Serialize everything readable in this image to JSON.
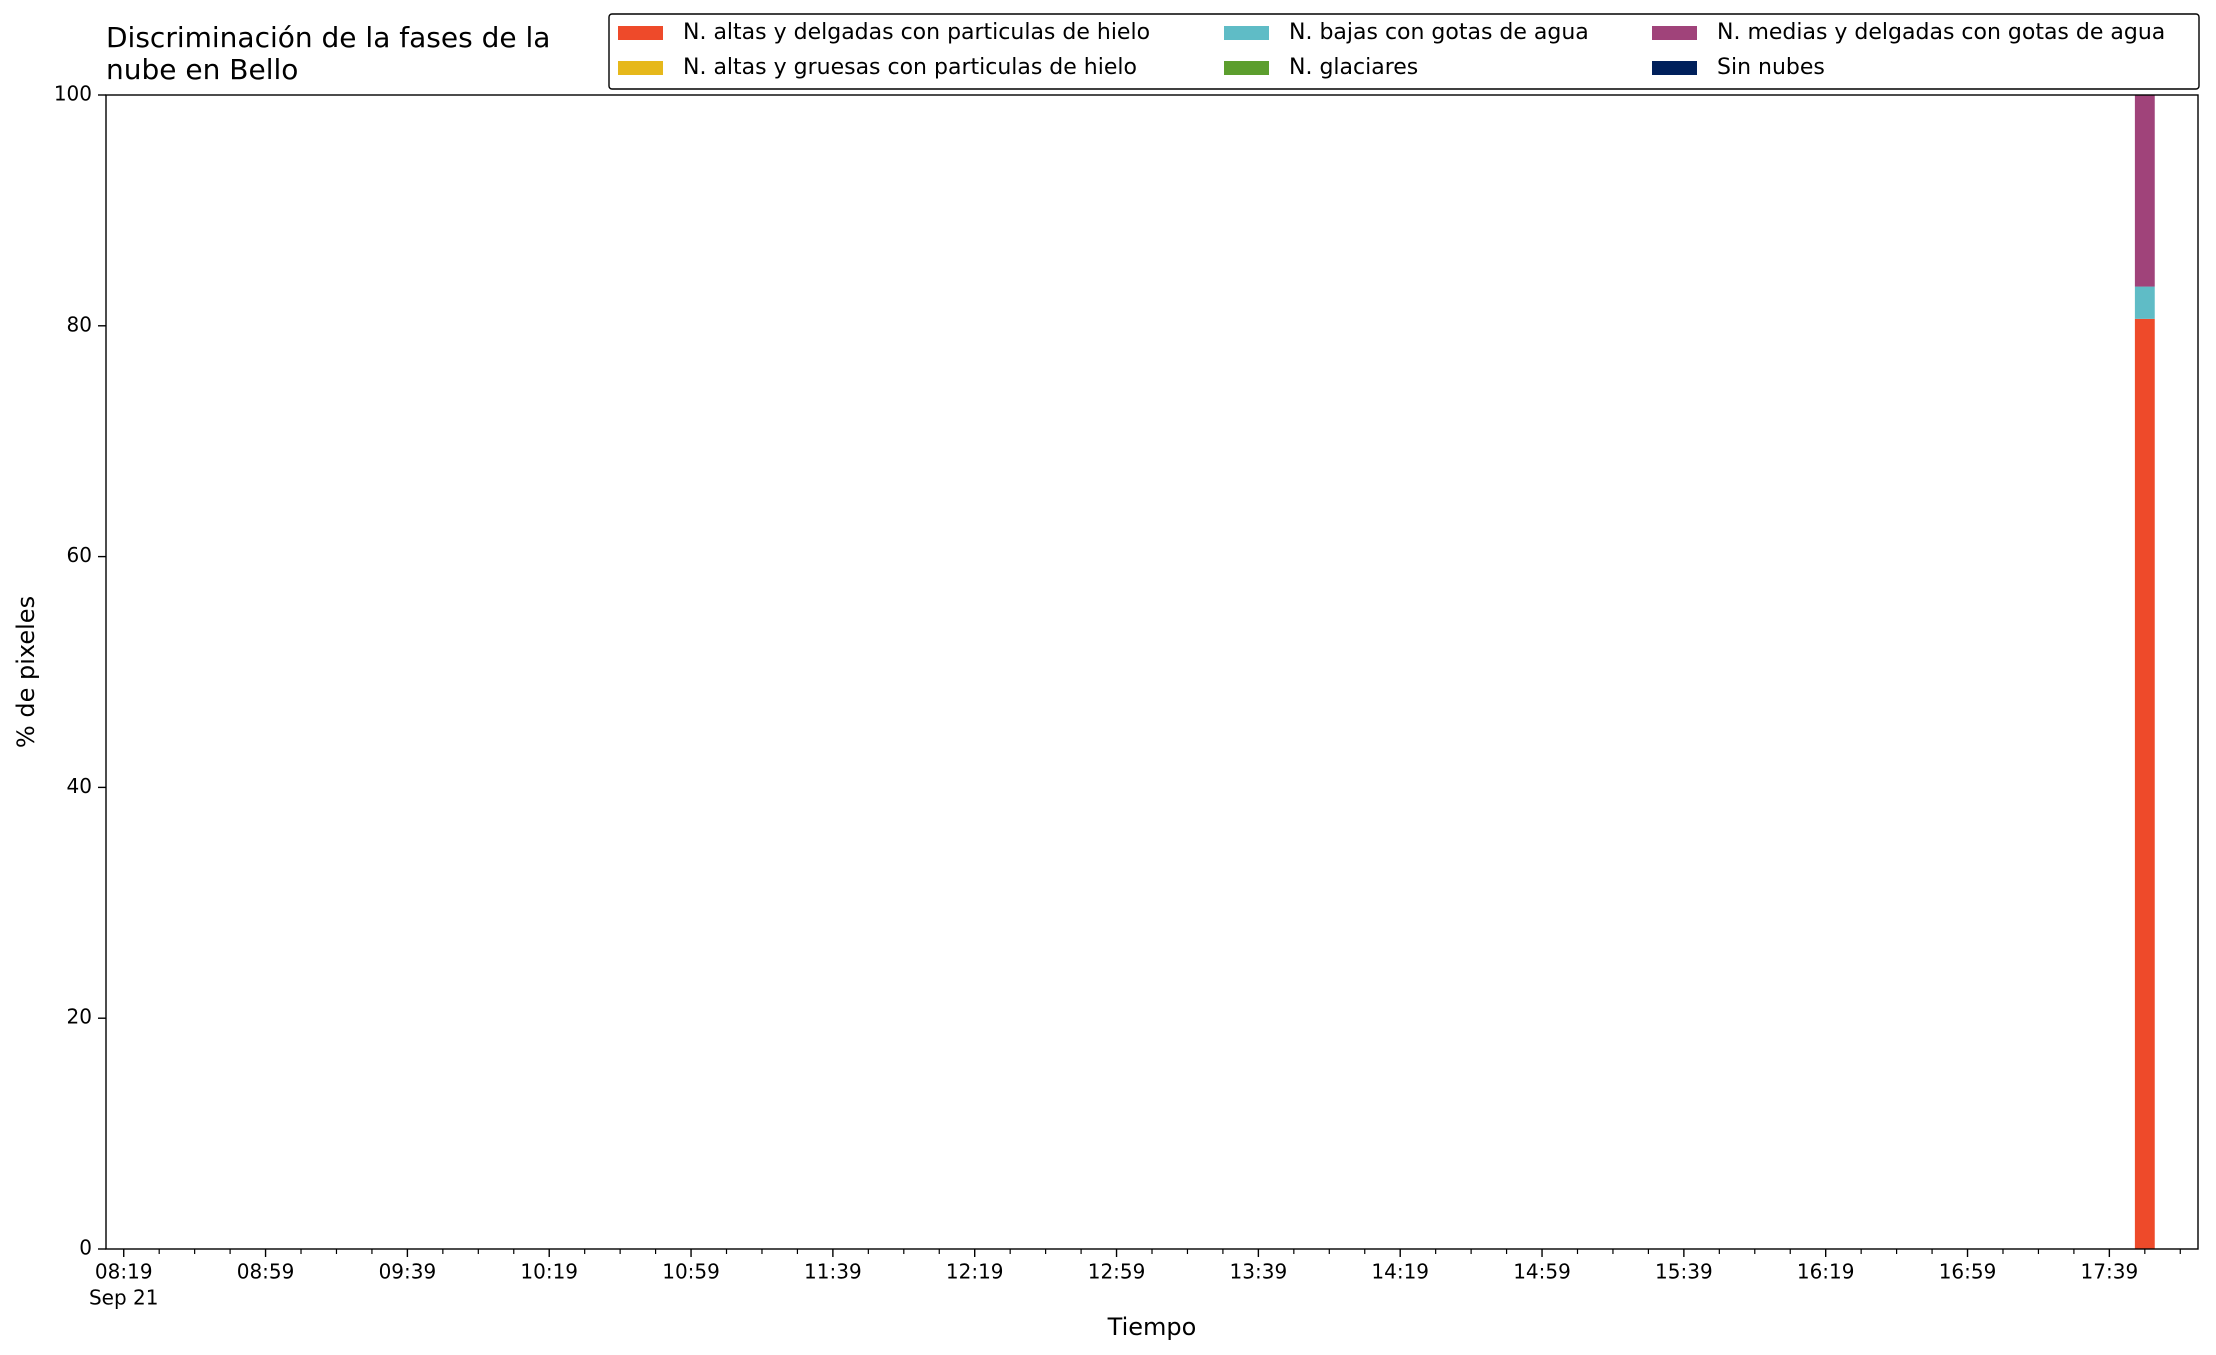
{
  "chart_data": {
    "type": "bar",
    "stacked": true,
    "title": "Discriminación de la fases de la\nnube en Bello",
    "xlabel": "Tiempo",
    "ylabel": "% de pixeles",
    "x": [
      "17:49"
    ],
    "x_date_label": "Sep 21",
    "series": [
      {
        "name": "N. altas y delgadas con particulas de hielo",
        "color": "#ee4a2a",
        "values": [
          80.6
        ]
      },
      {
        "name": "N. altas y gruesas con particulas de hielo",
        "color": "#e6b81b",
        "values": [
          0
        ]
      },
      {
        "name": "N. bajas con gotas de agua",
        "color": "#5fbcc6",
        "values": [
          2.8
        ]
      },
      {
        "name": "N. glaciares",
        "color": "#5c9e2e",
        "values": [
          0
        ]
      },
      {
        "name": "N. medias y delgadas con gotas de agua",
        "color": "#a0437a",
        "values": [
          16.6
        ]
      },
      {
        "name": "Sin nubes",
        "color": "#00205b",
        "values": [
          0
        ]
      }
    ],
    "xlim": [
      "08:14",
      "18:04"
    ],
    "xticks": [
      "08:19",
      "08:59",
      "09:39",
      "10:19",
      "10:59",
      "11:39",
      "12:19",
      "12:59",
      "13:39",
      "14:19",
      "14:59",
      "15:39",
      "16:19",
      "16:59",
      "17:39"
    ],
    "xminorticks": [
      "08:29",
      "08:39",
      "08:49",
      "09:09",
      "09:19",
      "09:29",
      "09:49",
      "09:59",
      "10:09",
      "10:29",
      "10:39",
      "10:49",
      "11:09",
      "11:19",
      "11:29",
      "11:49",
      "11:59",
      "12:09",
      "12:29",
      "12:39",
      "12:49",
      "13:09",
      "13:19",
      "13:29",
      "13:49",
      "13:59",
      "14:09",
      "14:29",
      "14:39",
      "14:49",
      "15:09",
      "15:19",
      "15:29",
      "15:49",
      "15:59",
      "16:09",
      "16:29",
      "16:39",
      "16:49",
      "17:09",
      "17:19",
      "17:29",
      "17:49",
      "17:59"
    ],
    "ylim": [
      0,
      100
    ],
    "yticks": [
      0,
      20,
      40,
      60,
      80,
      100
    ],
    "grid": false,
    "legend": "upper right",
    "legend_columns": 3
  }
}
